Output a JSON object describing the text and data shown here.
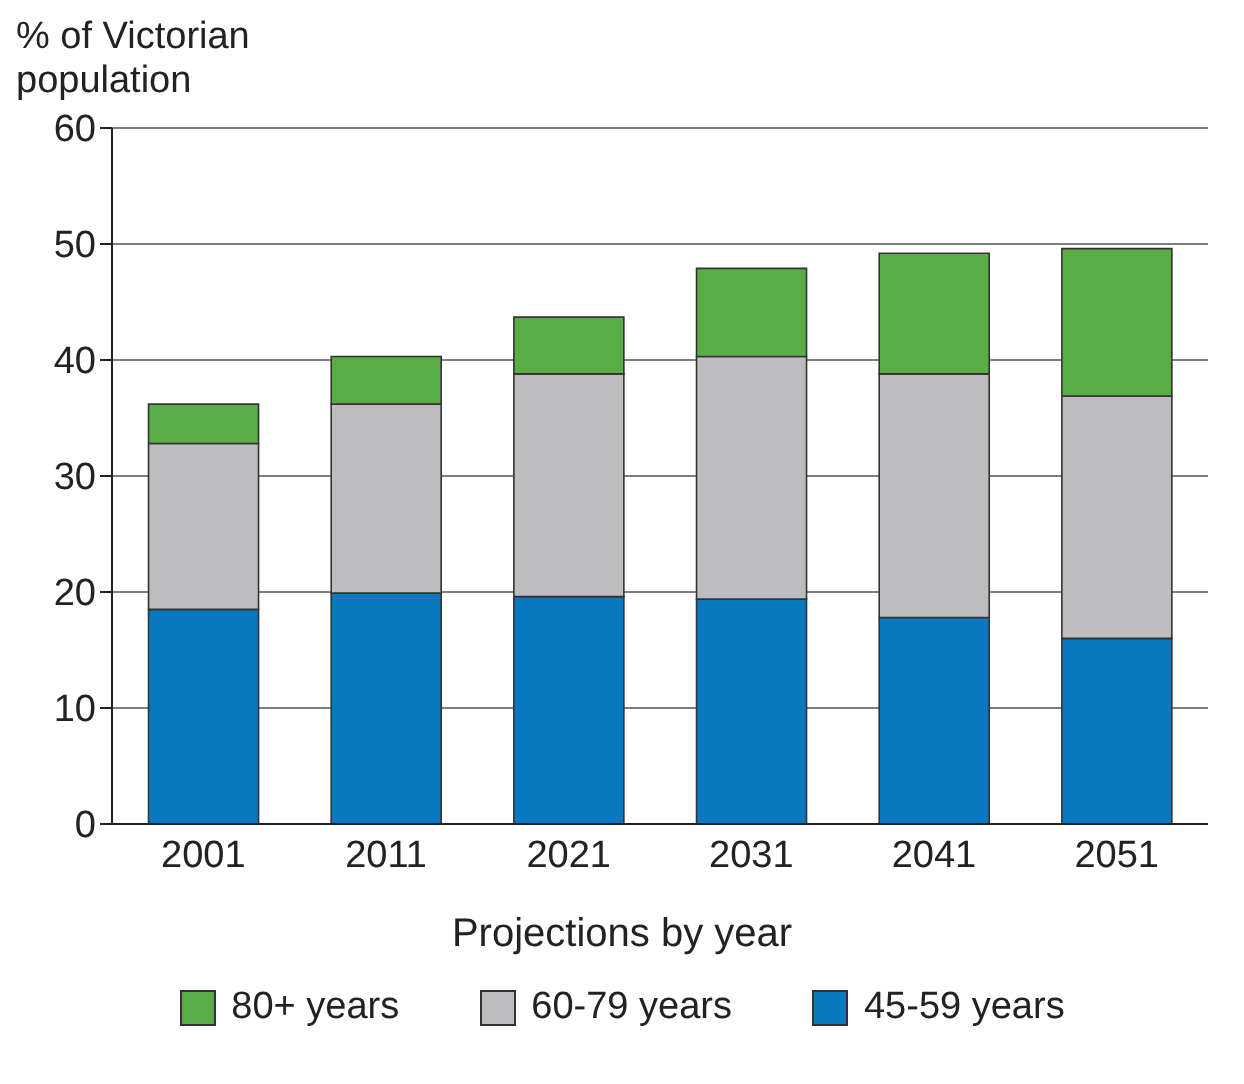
{
  "chart_data": {
    "type": "bar",
    "stacked": true,
    "ylabel": "% of Victorian population",
    "xlabel": "Projections by year",
    "categories": [
      "2001",
      "2011",
      "2021",
      "2031",
      "2041",
      "2051"
    ],
    "series": [
      {
        "name": "45-59 years",
        "color": "#0a78c0",
        "values": [
          18.5,
          19.9,
          19.6,
          19.4,
          17.8,
          16.0
        ]
      },
      {
        "name": "60-79 years",
        "color": "#bdbdc0",
        "values": [
          14.3,
          16.3,
          19.2,
          20.9,
          21.0,
          20.9
        ]
      },
      {
        "name": "80+ years",
        "color": "#5aad45",
        "values": [
          3.4,
          4.1,
          4.9,
          7.6,
          10.4,
          12.7
        ]
      }
    ],
    "ylim": [
      0,
      60
    ],
    "yticks": [
      0,
      10,
      20,
      30,
      40,
      50,
      60
    ],
    "grid": "y",
    "legend": "bottom"
  }
}
